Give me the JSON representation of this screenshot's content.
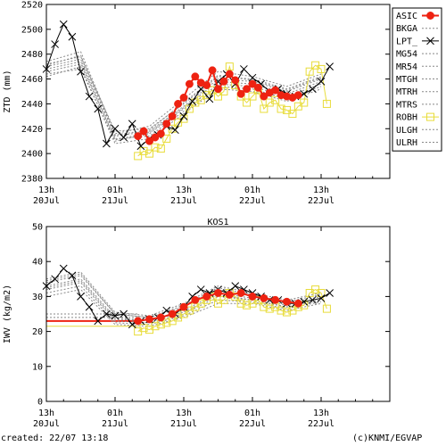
{
  "footer": {
    "created": "created: 22/07 13:18",
    "credit": "(c)KNMI/EGVAP"
  },
  "colors": {
    "asic": "#ee2211",
    "robh": "#e8dc3a",
    "lpt": "#000000",
    "others": "#888888",
    "axis": "#000000"
  },
  "chart_data": [
    {
      "type": "line",
      "title": "",
      "xlabel": "",
      "ylabel": "ZTD (mm)",
      "xlim": [
        0,
        60
      ],
      "ylim": [
        2380,
        2520
      ],
      "y_ticks": [
        2380,
        2400,
        2420,
        2440,
        2460,
        2480,
        2500,
        2520
      ],
      "x_ticks": [
        {
          "x": 0,
          "top": "13h",
          "bottom": "20Jul"
        },
        {
          "x": 12,
          "top": "01h",
          "bottom": "21Jul"
        },
        {
          "x": 24,
          "top": "13h",
          "bottom": "21Jul"
        },
        {
          "x": 36,
          "top": "01h",
          "bottom": "22Jul"
        },
        {
          "x": 48,
          "top": "13h",
          "bottom": "22Jul"
        }
      ],
      "legend_position": "right",
      "legend": [
        "ASIC",
        "BKGA",
        "LPT_",
        "MG54",
        "MR54",
        "MTGH",
        "MTRH",
        "MTRS",
        "ROBH",
        "ULGH",
        "ULRH"
      ],
      "series": [
        {
          "name": "ASIC",
          "style": "filled-circle",
          "x": [
            16,
            17,
            18,
            19,
            20,
            21,
            22,
            23,
            24,
            25,
            26,
            27,
            28,
            29,
            30,
            31,
            32,
            33,
            34,
            35,
            36,
            37,
            38,
            39,
            40,
            41,
            42,
            43,
            44
          ],
          "y": [
            2414,
            2418,
            2410,
            2413,
            2416,
            2424,
            2430,
            2440,
            2445,
            2456,
            2462,
            2457,
            2455,
            2467,
            2452,
            2458,
            2464,
            2459,
            2448,
            2452,
            2456,
            2453,
            2446,
            2449,
            2451,
            2447,
            2446,
            2445,
            2447
          ]
        },
        {
          "name": "LPT_",
          "style": "x-line",
          "x": [
            0,
            1.5,
            3,
            4.5,
            6,
            7.5,
            9,
            10.5,
            12,
            13.5,
            15,
            16.5,
            18,
            19.5,
            21,
            22.5,
            24,
            25.5,
            27,
            28.5,
            30,
            31.5,
            33,
            34.5,
            36,
            37.5,
            39,
            40.5,
            42,
            43.5,
            45,
            46.5,
            48,
            49.5
          ],
          "y": [
            2468,
            2488,
            2504,
            2494,
            2466,
            2446,
            2436,
            2408,
            2420,
            2413,
            2424,
            2406,
            2412,
            2415,
            2422,
            2419,
            2430,
            2442,
            2452,
            2444,
            2458,
            2464,
            2456,
            2468,
            2461,
            2456,
            2450,
            2452,
            2448,
            2446,
            2448,
            2452,
            2458,
            2470
          ]
        },
        {
          "name": "ROBH",
          "style": "open-square",
          "x": [
            16,
            17,
            18,
            19,
            20,
            21,
            22,
            23,
            24,
            25,
            26,
            27,
            28,
            29,
            30,
            31,
            32,
            33,
            34,
            35,
            36,
            37,
            38,
            39,
            40,
            41,
            42,
            43,
            44,
            45,
            46,
            47,
            48,
            49
          ],
          "y": [
            2398,
            2402,
            2400,
            2405,
            2404,
            2412,
            2420,
            2425,
            2428,
            2436,
            2441,
            2443,
            2447,
            2451,
            2446,
            2450,
            2470,
            2455,
            2446,
            2441,
            2446,
            2451,
            2436,
            2441,
            2443,
            2436,
            2435,
            2432,
            2438,
            2441,
            2466,
            2471,
            2468,
            2440
          ]
        },
        {
          "name": "BKGA",
          "style": "dotted",
          "x": [
            0,
            6,
            12,
            18,
            24,
            30,
            36,
            42,
            48
          ],
          "y": [
            2472,
            2478,
            2418,
            2420,
            2440,
            2462,
            2460,
            2452,
            2462
          ]
        },
        {
          "name": "MG54",
          "style": "dotted",
          "x": [
            0,
            6,
            12,
            18,
            24,
            30,
            36,
            42,
            48
          ],
          "y": [
            2466,
            2472,
            2412,
            2414,
            2434,
            2456,
            2454,
            2446,
            2456
          ]
        },
        {
          "name": "MR54",
          "style": "dotted",
          "x": [
            0,
            6,
            12,
            18,
            24,
            30,
            36,
            42,
            48
          ],
          "y": [
            2470,
            2476,
            2414,
            2418,
            2438,
            2460,
            2458,
            2450,
            2460
          ]
        },
        {
          "name": "MTGH",
          "style": "dotted",
          "x": [
            0,
            6,
            12,
            18,
            24,
            30,
            36,
            42,
            48
          ],
          "y": [
            2464,
            2468,
            2410,
            2416,
            2436,
            2454,
            2452,
            2444,
            2454
          ]
        },
        {
          "name": "MTRH",
          "style": "dotted",
          "x": [
            0,
            6,
            12,
            18,
            24,
            30,
            36,
            42,
            48
          ],
          "y": [
            2474,
            2482,
            2416,
            2422,
            2444,
            2466,
            2462,
            2454,
            2464
          ]
        },
        {
          "name": "MTRS",
          "style": "dotted",
          "x": [
            0,
            6,
            12,
            18,
            24,
            30,
            36,
            42,
            48
          ],
          "y": [
            2462,
            2470,
            2408,
            2412,
            2432,
            2452,
            2450,
            2442,
            2452
          ]
        },
        {
          "name": "ULGH",
          "style": "dotted",
          "x": [
            0,
            6,
            12,
            18,
            24,
            30,
            36,
            42,
            48
          ],
          "y": [
            2468,
            2474,
            2411,
            2417,
            2437,
            2458,
            2456,
            2448,
            2458
          ]
        },
        {
          "name": "ULRH",
          "style": "dotted",
          "x": [
            0,
            6,
            12,
            18,
            24,
            30,
            36,
            42,
            48
          ],
          "y": [
            2471,
            2479,
            2415,
            2419,
            2441,
            2463,
            2459,
            2451,
            2461
          ]
        }
      ]
    },
    {
      "type": "line",
      "title": "KOS1",
      "xlabel": "",
      "ylabel": "IWV (kg/m2)",
      "xlim": [
        0,
        60
      ],
      "ylim": [
        0,
        50
      ],
      "y_ticks": [
        0,
        10,
        20,
        30,
        40,
        50
      ],
      "x_ticks": [
        {
          "x": 0,
          "top": "13h",
          "bottom": "20Jul"
        },
        {
          "x": 12,
          "top": "01h",
          "bottom": "21Jul"
        },
        {
          "x": 24,
          "top": "13h",
          "bottom": "21Jul"
        },
        {
          "x": 36,
          "top": "01h",
          "bottom": "22Jul"
        },
        {
          "x": 48,
          "top": "13h",
          "bottom": "22Jul"
        }
      ],
      "reference_lines": [
        {
          "series": "ASIC",
          "y": 23,
          "x_range": [
            0,
            16
          ]
        },
        {
          "series": "ROBH",
          "y": 21.5,
          "x_range": [
            0,
            16
          ]
        },
        {
          "series": "BKGA",
          "y": 25,
          "x_range": [
            0,
            16
          ]
        },
        {
          "series": "MTRH",
          "y": 24,
          "x_range": [
            0,
            16
          ]
        }
      ],
      "series": [
        {
          "name": "ASIC",
          "style": "filled-circle",
          "x": [
            16,
            18,
            20,
            22,
            24,
            26,
            28,
            30,
            32,
            34,
            36,
            38,
            40,
            42,
            44
          ],
          "y": [
            23,
            23.5,
            24,
            25,
            27,
            29,
            30,
            31,
            30.5,
            31,
            30,
            29.5,
            29,
            28.5,
            28
          ]
        },
        {
          "name": "LPT_",
          "style": "x-line",
          "x": [
            0,
            1.5,
            3,
            4.5,
            6,
            7.5,
            9,
            10.5,
            12,
            13.5,
            15,
            16.5,
            18,
            19.5,
            21,
            22.5,
            24,
            25.5,
            27,
            28.5,
            30,
            31.5,
            33,
            34.5,
            36,
            37.5,
            39,
            40.5,
            42,
            43.5,
            45,
            46.5,
            48,
            49.5
          ],
          "y": [
            33,
            35,
            38,
            36,
            30,
            27,
            23,
            25,
            24.5,
            25,
            22,
            23,
            23.5,
            24,
            26,
            25,
            27,
            30,
            32,
            31,
            32,
            31,
            33,
            32,
            31,
            30,
            29,
            29,
            28,
            28,
            28.5,
            29,
            29.5,
            31
          ]
        },
        {
          "name": "ROBH",
          "style": "open-square",
          "x": [
            16,
            17,
            18,
            19,
            20,
            21,
            22,
            23,
            24,
            25,
            26,
            27,
            28,
            29,
            30,
            31,
            32,
            33,
            34,
            35,
            36,
            37,
            38,
            39,
            40,
            41,
            42,
            43,
            44,
            45,
            46,
            47,
            48,
            49
          ],
          "y": [
            20,
            21,
            20.5,
            21.5,
            22,
            22.5,
            23,
            24,
            25,
            26,
            27,
            28,
            29,
            30,
            28,
            29,
            31,
            30,
            28,
            27.5,
            28,
            29,
            27,
            26.5,
            27,
            26,
            25.5,
            26,
            27,
            27.5,
            31,
            32,
            31,
            26.5
          ]
        },
        {
          "name": "BKGA",
          "style": "dotted",
          "x": [
            0,
            6,
            12,
            18,
            24,
            30,
            36,
            42,
            48
          ],
          "y": [
            34,
            36,
            25,
            24,
            27,
            32,
            30,
            28,
            30
          ]
        },
        {
          "name": "MG54",
          "style": "dotted",
          "x": [
            0,
            6,
            12,
            18,
            24,
            30,
            36,
            42,
            48
          ],
          "y": [
            32,
            34,
            23,
            22.5,
            25,
            30,
            29,
            27,
            29
          ]
        },
        {
          "name": "MR54",
          "style": "dotted",
          "x": [
            0,
            6,
            12,
            18,
            24,
            30,
            36,
            42,
            48
          ],
          "y": [
            33,
            35,
            24,
            23,
            26,
            31,
            29.5,
            27.5,
            29.5
          ]
        },
        {
          "name": "MTGH",
          "style": "dotted",
          "x": [
            0,
            6,
            12,
            18,
            24,
            30,
            36,
            42,
            48
          ],
          "y": [
            31,
            33,
            22.5,
            22,
            24.5,
            29,
            28.5,
            26.5,
            28.5
          ]
        },
        {
          "name": "MTRH",
          "style": "dotted",
          "x": [
            0,
            6,
            12,
            18,
            24,
            30,
            36,
            42,
            48
          ],
          "y": [
            35,
            37,
            25.5,
            24.5,
            28,
            33,
            31,
            29,
            31
          ]
        },
        {
          "name": "MTRS",
          "style": "dotted",
          "x": [
            0,
            6,
            12,
            18,
            24,
            30,
            36,
            42,
            48
          ],
          "y": [
            30,
            32,
            22,
            21.5,
            24,
            28,
            28,
            26,
            28
          ]
        },
        {
          "name": "ULGH",
          "style": "dotted",
          "x": [
            0,
            6,
            12,
            18,
            24,
            30,
            36,
            42,
            48
          ],
          "y": [
            32.5,
            34.5,
            23.5,
            23,
            25.5,
            30.5,
            29,
            27,
            29
          ]
        },
        {
          "name": "ULRH",
          "style": "dotted",
          "x": [
            0,
            6,
            12,
            18,
            24,
            30,
            36,
            42,
            48
          ],
          "y": [
            34.5,
            36.5,
            25,
            24,
            27.5,
            32.5,
            30.5,
            28.5,
            30.5
          ]
        }
      ]
    }
  ]
}
